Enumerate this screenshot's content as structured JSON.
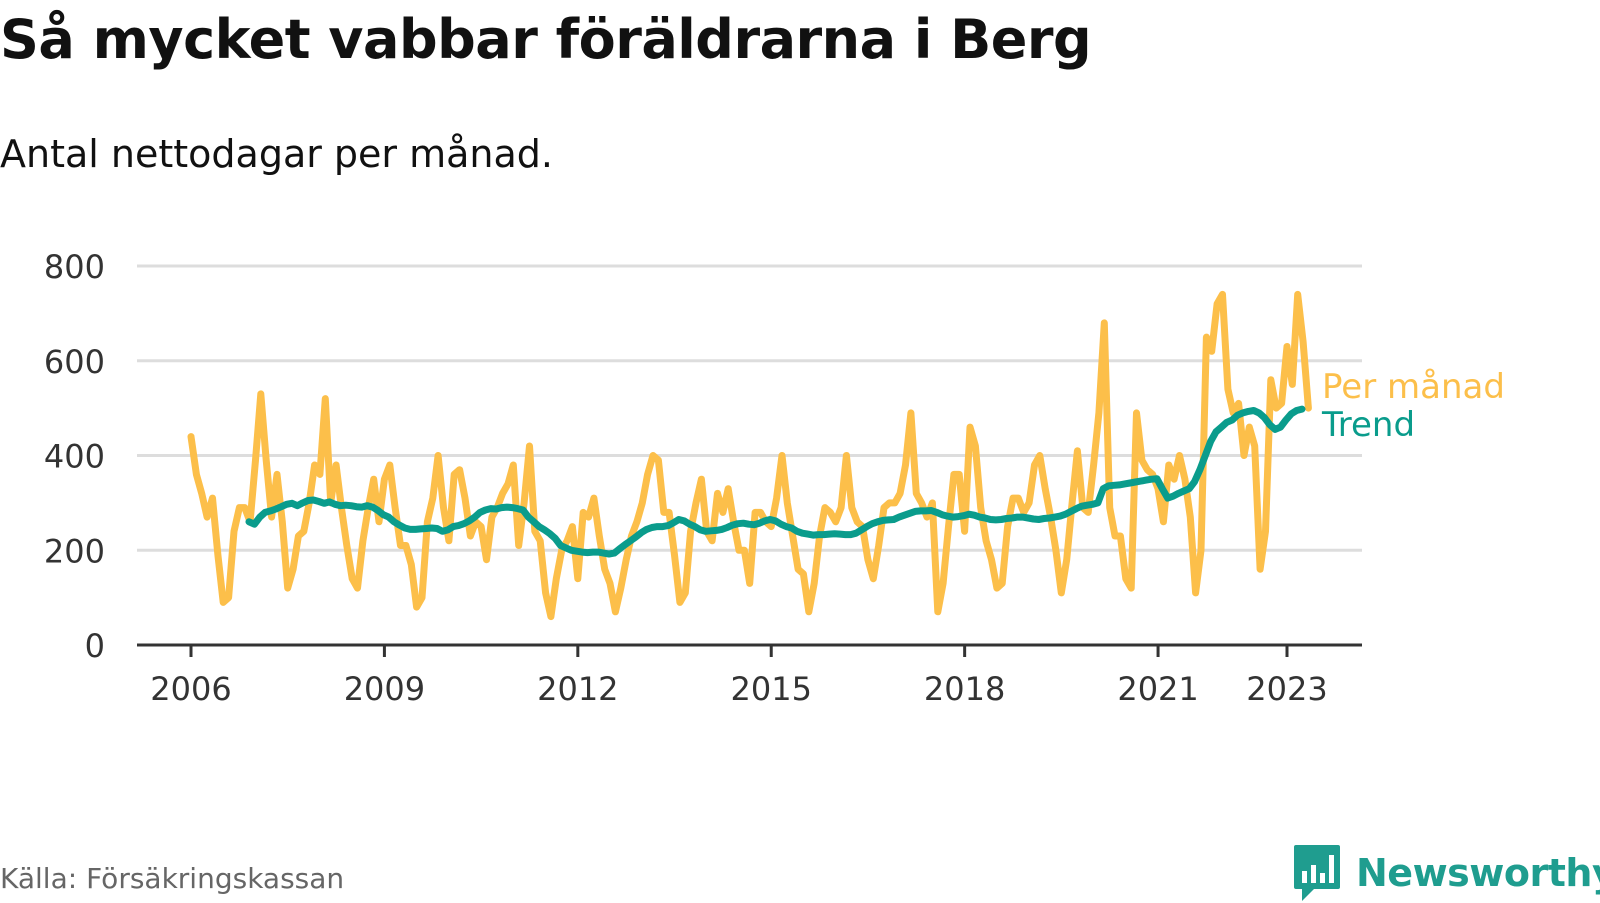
{
  "header": {
    "title": "Så mycket vabbar föräldrarna i Berg",
    "subtitle": "Antal nettodagar per månad."
  },
  "footer": {
    "source": "Källa: Försäkringskassan",
    "brand": "Newsworthy",
    "brand_icon": "bar-chart-speech-bubble-icon"
  },
  "colors": {
    "monthly": "#fcbf4a",
    "trend": "#0a9c8c",
    "grid": "#dddddd",
    "axis": "#333333",
    "brand": "#1f9d8f"
  },
  "chart_data": {
    "type": "line",
    "title": "Så mycket vabbar föräldrarna i Berg",
    "subtitle": "Antal nettodagar per månad.",
    "xlabel": "",
    "ylabel": "",
    "ylim": [
      0,
      800
    ],
    "xlim": [
      2006,
      2024.2
    ],
    "yticks": [
      0,
      200,
      400,
      600,
      800
    ],
    "xticks": [
      "2006",
      "2009",
      "2012",
      "2015",
      "2018",
      "2021",
      "2023"
    ],
    "grid": true,
    "legend": "right, at end of lines",
    "series": [
      {
        "name": "Per månad",
        "start": 2006.0,
        "step": 0.08333,
        "values": [
          440,
          360,
          320,
          270,
          310,
          190,
          90,
          100,
          240,
          290,
          290,
          260,
          390,
          530,
          390,
          270,
          360,
          260,
          120,
          160,
          230,
          240,
          300,
          380,
          360,
          520,
          300,
          380,
          290,
          210,
          140,
          120,
          220,
          290,
          350,
          260,
          350,
          380,
          290,
          210,
          210,
          170,
          80,
          100,
          260,
          310,
          400,
          290,
          220,
          360,
          370,
          310,
          230,
          260,
          250,
          180,
          270,
          290,
          320,
          340,
          380,
          210,
          300,
          420,
          240,
          220,
          110,
          60,
          140,
          200,
          220,
          250,
          140,
          280,
          270,
          310,
          230,
          160,
          130,
          70,
          120,
          180,
          230,
          260,
          300,
          360,
          400,
          390,
          280,
          280,
          190,
          90,
          110,
          240,
          300,
          350,
          240,
          220,
          320,
          280,
          330,
          260,
          200,
          200,
          130,
          280,
          280,
          260,
          250,
          310,
          400,
          300,
          230,
          160,
          150,
          70,
          130,
          230,
          290,
          280,
          260,
          290,
          400,
          290,
          260,
          250,
          180,
          140,
          210,
          290,
          300,
          300,
          320,
          380,
          490,
          320,
          300,
          270,
          300,
          70,
          130,
          250,
          360,
          360,
          240,
          460,
          420,
          290,
          220,
          180,
          120,
          130,
          250,
          310,
          310,
          280,
          300,
          380,
          400,
          330,
          270,
          200,
          110,
          180,
          300,
          410,
          290,
          280,
          380,
          490,
          680,
          290,
          230,
          230,
          140,
          120,
          490,
          390,
          370,
          360,
          330,
          260,
          380,
          350,
          400,
          350,
          270,
          110,
          200,
          650,
          620,
          720,
          740,
          540,
          490,
          510,
          400,
          460,
          420,
          160,
          240,
          560,
          500,
          510,
          630,
          550,
          740,
          640,
          500
        ]
      },
      {
        "name": "Trend",
        "start": 2006.9,
        "step": 0.08333,
        "values": [
          260,
          255,
          270,
          280,
          283,
          287,
          292,
          297,
          299,
          294,
          300,
          305,
          306,
          303,
          299,
          302,
          297,
          294,
          295,
          294,
          292,
          291,
          294,
          291,
          284,
          275,
          270,
          260,
          253,
          247,
          244,
          244,
          245,
          246,
          247,
          246,
          240,
          243,
          250,
          252,
          256,
          262,
          270,
          280,
          285,
          288,
          287,
          290,
          291,
          290,
          288,
          285,
          270,
          260,
          250,
          243,
          235,
          225,
          210,
          205,
          200,
          198,
          196,
          195,
          196,
          196,
          194,
          192,
          194,
          203,
          212,
          220,
          228,
          237,
          244,
          248,
          250,
          250,
          252,
          258,
          265,
          262,
          255,
          250,
          243,
          240,
          241,
          242,
          244,
          248,
          253,
          256,
          257,
          255,
          254,
          257,
          262,
          265,
          262,
          255,
          250,
          247,
          240,
          236,
          234,
          232,
          233,
          233,
          234,
          235,
          234,
          233,
          233,
          236,
          243,
          250,
          256,
          260,
          263,
          264,
          265,
          270,
          274,
          278,
          282,
          283,
          283,
          284,
          280,
          275,
          272,
          270,
          271,
          273,
          276,
          274,
          270,
          268,
          265,
          264,
          265,
          267,
          268,
          270,
          270,
          268,
          266,
          265,
          267,
          268,
          270,
          272,
          276,
          282,
          288,
          293,
          295,
          297,
          300,
          330,
          336,
          337,
          338,
          340,
          342,
          344,
          346,
          348,
          350,
          351,
          330,
          310,
          314,
          320,
          325,
          330,
          345,
          370,
          400,
          430,
          450,
          460,
          470,
          475,
          485,
          490,
          493,
          495,
          490,
          480,
          465,
          455,
          460,
          475,
          488,
          495,
          498
        ]
      }
    ]
  }
}
